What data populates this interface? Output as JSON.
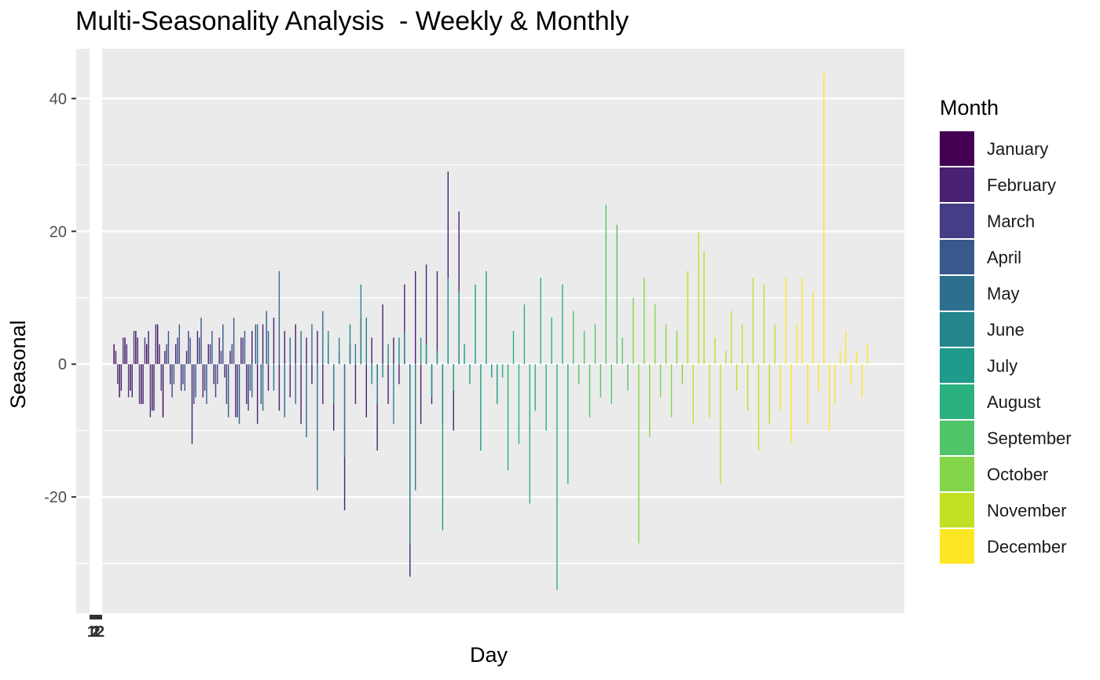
{
  "chart_data": {
    "type": "bar",
    "title": "Multi-Seasonality Analysis  - Weekly & Monthly",
    "xlabel": "Day",
    "ylabel": "Seasonal",
    "ylim": [
      -37.5,
      47.5
    ],
    "y_ticks": [
      40,
      20,
      0,
      -20
    ],
    "y_tick_labels": [
      "40",
      "20",
      "0",
      "-20"
    ],
    "x_tick_labels": [
      "1",
      "2",
      "12"
    ],
    "grid": true,
    "legend": {
      "title": "Month",
      "position": "right"
    },
    "month_colors": {
      "January": "#440154",
      "February": "#482173",
      "March": "#433E85",
      "April": "#38598C",
      "May": "#2D708E",
      "June": "#25858E",
      "July": "#1E9B8A",
      "August": "#2BB07F",
      "September": "#51C56A",
      "October": "#85D54A",
      "November": "#C2DF23",
      "December": "#FDE725"
    },
    "series": [
      {
        "name": "January",
        "x": [
          16,
          19,
          22,
          25,
          28,
          31,
          34,
          37,
          40,
          43
        ],
        "values": [
          3,
          -5,
          4,
          -4,
          5,
          -6,
          3,
          -7,
          6,
          -8
        ]
      },
      {
        "name": "February",
        "x": [
          17,
          20,
          23,
          26,
          29,
          32,
          35,
          38,
          41,
          44,
          47,
          50,
          53,
          56,
          59,
          62,
          65,
          68,
          71,
          74,
          77,
          80,
          83,
          86,
          89,
          92,
          95,
          98,
          101,
          104,
          107,
          110,
          113,
          116,
          119,
          122,
          125,
          128,
          131,
          134,
          137,
          140,
          143,
          146,
          149,
          152,
          155,
          158,
          161,
          164,
          167,
          170,
          173,
          176,
          179,
          182,
          185,
          188,
          191,
          194,
          197,
          200,
          203,
          206
        ],
        "values": [
          2,
          -4,
          3,
          -5,
          4,
          -6,
          5,
          -7,
          3,
          2,
          -3,
          3,
          -4,
          2,
          -12,
          5,
          -5,
          3,
          -3,
          4,
          -2,
          2,
          -8,
          4,
          -6,
          5,
          -9,
          6,
          -4,
          7,
          -7,
          5,
          -5,
          6,
          -9,
          4,
          -3,
          5,
          -6,
          3,
          -10,
          2,
          -22,
          3,
          -6,
          7,
          -8,
          4,
          -13,
          9,
          -6,
          4,
          -3,
          12,
          -32,
          14,
          -9,
          15,
          -6,
          14,
          -9,
          29,
          -10,
          23
        ]
      },
      {
        "name": "March",
        "x": [
          18,
          21,
          24,
          27,
          30,
          33,
          36,
          39,
          42,
          45,
          48,
          51,
          54,
          57,
          60,
          63,
          66,
          69,
          72,
          75,
          78,
          81,
          84,
          87,
          90
        ],
        "values": [
          -3,
          4,
          -5,
          5,
          -6,
          4,
          -8,
          6,
          -4,
          3,
          -5,
          4,
          -3,
          5,
          -6,
          4,
          -4,
          3,
          -5,
          2,
          -6,
          3,
          -8,
          4,
          -7
        ]
      },
      {
        "name": "April",
        "x": [
          46,
          49,
          52,
          55,
          58,
          61,
          64,
          67,
          70,
          73,
          76,
          79,
          82,
          85,
          88,
          91,
          94,
          97,
          100
        ],
        "values": [
          5,
          -3,
          6,
          -4,
          4,
          -5,
          7,
          -6,
          5,
          -3,
          6,
          -8,
          7,
          -9,
          5,
          -4,
          6,
          -6,
          8
        ]
      },
      {
        "name": "May",
        "x": [
          92,
          95,
          98,
          101,
          104,
          107,
          110,
          113,
          116,
          119,
          122,
          125,
          128,
          131
        ],
        "values": [
          -5,
          6,
          -7,
          5,
          -4,
          14,
          -8,
          4,
          -6,
          5,
          -11,
          6,
          -19,
          8
        ]
      },
      {
        "name": "June",
        "x": [
          134,
          137,
          140,
          143,
          146,
          149,
          152,
          155,
          158,
          161,
          164,
          167,
          170,
          173,
          176,
          179,
          182
        ],
        "values": [
          5,
          -6,
          4,
          -14,
          6,
          3,
          12,
          7,
          -3,
          -6,
          -2,
          3,
          -9,
          4,
          5,
          -27,
          -19
        ]
      },
      {
        "name": "July",
        "x": [
          185,
          188,
          191,
          194,
          197,
          200,
          203,
          206,
          209,
          212,
          215,
          218,
          221,
          224,
          227
        ],
        "values": [
          4,
          3,
          -5,
          2,
          -25,
          13,
          -4,
          11,
          3,
          -3,
          12,
          -13,
          14,
          -2,
          -6
        ]
      },
      {
        "name": "August",
        "x": [
          230,
          233,
          236,
          239,
          242,
          245,
          248,
          251,
          254,
          257,
          260,
          263,
          266
        ],
        "values": [
          -2,
          -16,
          5,
          -12,
          9,
          -21,
          -7,
          13,
          -10,
          7,
          -34,
          12,
          -18
        ]
      },
      {
        "name": "September",
        "x": [
          269,
          272,
          275,
          278,
          281,
          284,
          287,
          290,
          293,
          296,
          299
        ],
        "values": [
          8,
          -3,
          5,
          -8,
          6,
          -5,
          24,
          -6,
          21,
          4,
          -4
        ]
      },
      {
        "name": "October",
        "x": [
          302,
          305,
          308,
          311,
          314,
          317,
          320,
          323,
          326,
          329
        ],
        "values": [
          10,
          -27,
          13,
          -11,
          9,
          -5,
          6,
          -8,
          5,
          -3
        ]
      },
      {
        "name": "November",
        "x": [
          332,
          335,
          338,
          341,
          344,
          347,
          350,
          353,
          356,
          359,
          362,
          365,
          368,
          371,
          374,
          377,
          380
        ],
        "values": [
          14,
          -9,
          20,
          17,
          -8,
          4,
          -18,
          2,
          8,
          -4,
          6,
          -7,
          13,
          -13,
          12,
          -9,
          6
        ]
      },
      {
        "name": "December",
        "x": [
          383,
          386,
          389,
          392,
          395,
          398,
          401,
          404,
          407,
          410,
          413,
          416,
          419,
          422,
          425,
          428,
          431
        ],
        "values": [
          -7,
          13,
          -12,
          6,
          13,
          -9,
          11,
          -4,
          44,
          -10,
          -6,
          2,
          5,
          -3,
          2,
          -5,
          3
        ]
      }
    ]
  }
}
